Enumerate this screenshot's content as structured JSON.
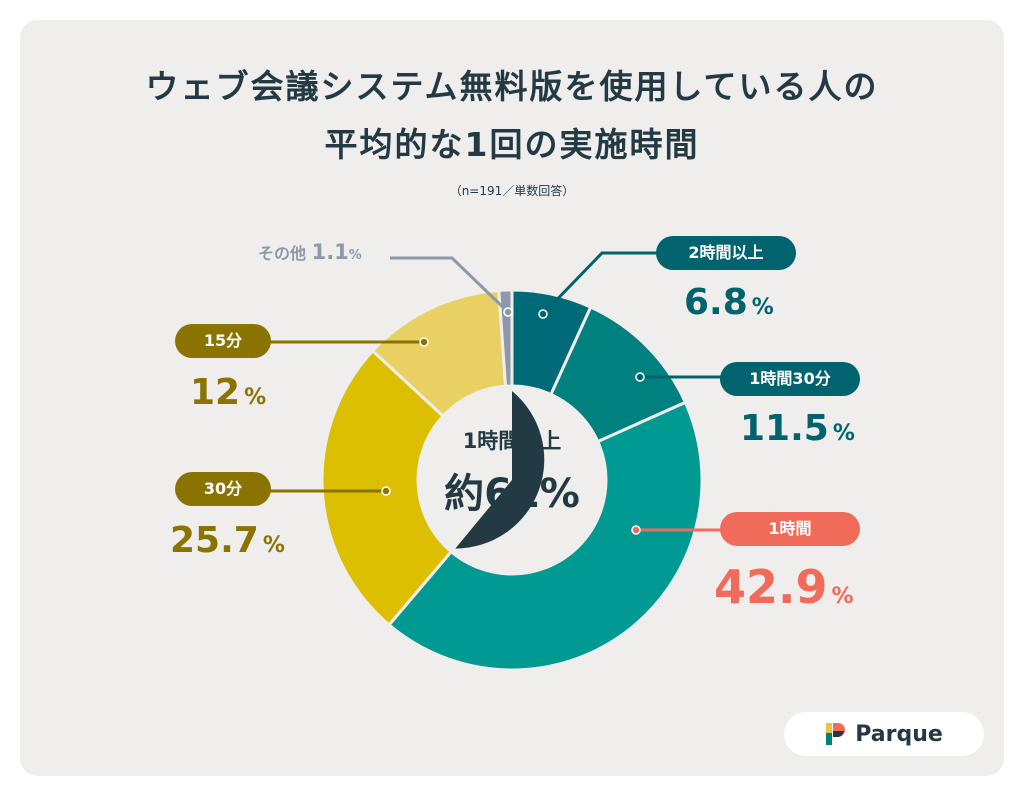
{
  "chart_data": {
    "type": "pie",
    "title": "ウェブ会議システム無料版を使用している人の平均的な1回の実施時間",
    "title_lines": [
      "ウェブ会議システム無料版を使用している人の",
      "平均的な1回の実施時間"
    ],
    "subtitle": "（n=191／単数回答）",
    "categories": [
      "2時間以上",
      "1時間30分",
      "1時間",
      "30分",
      "15分",
      "その他"
    ],
    "values": [
      6.8,
      11.5,
      42.9,
      25.7,
      12,
      1.1
    ],
    "value_labels": [
      "6.8",
      "11.5",
      "42.9",
      "25.7",
      "12",
      "1.1"
    ],
    "unit": "%",
    "colors": [
      "#006a78",
      "#00807f",
      "#009a92",
      "#dbbf00",
      "#e8d162",
      "#8e98a8"
    ],
    "inner": {
      "label": "1時間以上",
      "value_label": "約61%",
      "value": 61,
      "color": "#233a44"
    }
  },
  "brand": "Parque"
}
